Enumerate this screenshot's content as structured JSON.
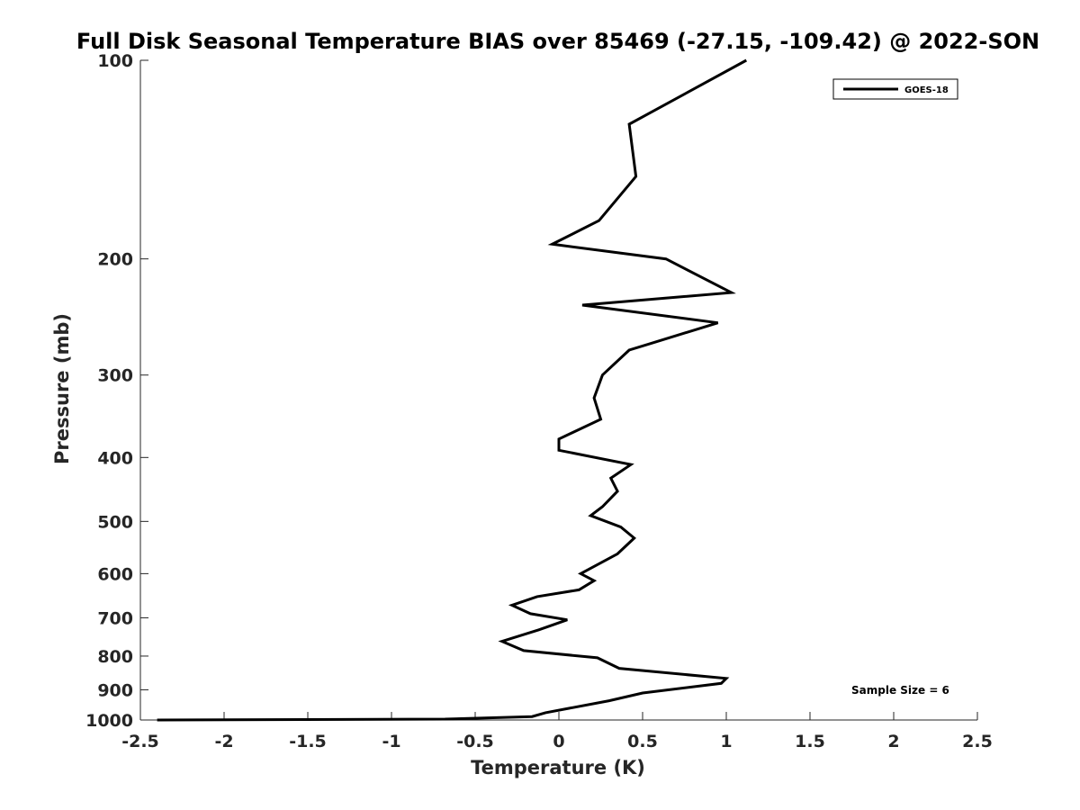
{
  "chart_data": {
    "type": "line",
    "title": "Full Disk Seasonal Temperature BIAS over 85469 (-27.15, -109.42) @ 2022-SON",
    "xlabel": "Temperature (K)",
    "ylabel": "Pressure (mb)",
    "xlim": [
      -2.5,
      2.5
    ],
    "ylim": [
      100,
      1000
    ],
    "yscale": "log",
    "yreversed": true,
    "xticks": [
      -2.5,
      -2,
      -1.5,
      -1,
      -0.5,
      0,
      0.5,
      1,
      1.5,
      2,
      2.5
    ],
    "xtick_labels": [
      "-2.5",
      "-2",
      "-1.5",
      "-1",
      "-0.5",
      "0",
      "0.5",
      "1",
      "1.5",
      "2",
      "2.5"
    ],
    "yticks": [
      100,
      200,
      300,
      400,
      500,
      600,
      700,
      800,
      900,
      1000
    ],
    "ytick_labels": [
      "100",
      "200",
      "300",
      "400",
      "500",
      "600",
      "700",
      "800",
      "900",
      "1000"
    ],
    "grid": false,
    "legend": {
      "position": "top-right",
      "entries": [
        "GOES-18"
      ]
    },
    "annotation": "Sample Size = 6",
    "series": [
      {
        "name": "GOES-18",
        "color": "#000000",
        "points": [
          [
            1.12,
            100
          ],
          [
            0.42,
            125
          ],
          [
            0.46,
            150
          ],
          [
            0.24,
            175
          ],
          [
            -0.04,
            190
          ],
          [
            0.64,
            200
          ],
          [
            1.03,
            225
          ],
          [
            0.14,
            235
          ],
          [
            0.95,
            250
          ],
          [
            0.42,
            275
          ],
          [
            0.26,
            300
          ],
          [
            0.21,
            325
          ],
          [
            0.25,
            350
          ],
          [
            0.0,
            375
          ],
          [
            0.0,
            390
          ],
          [
            0.43,
            410
          ],
          [
            0.31,
            430
          ],
          [
            0.35,
            450
          ],
          [
            0.26,
            475
          ],
          [
            0.19,
            490
          ],
          [
            0.37,
            510
          ],
          [
            0.45,
            530
          ],
          [
            0.35,
            560
          ],
          [
            0.13,
            600
          ],
          [
            0.21,
            615
          ],
          [
            0.12,
            635
          ],
          [
            -0.13,
            650
          ],
          [
            -0.28,
            670
          ],
          [
            -0.17,
            690
          ],
          [
            0.05,
            705
          ],
          [
            -0.12,
            730
          ],
          [
            -0.34,
            760
          ],
          [
            -0.21,
            785
          ],
          [
            0.23,
            805
          ],
          [
            0.36,
            835
          ],
          [
            1.0,
            865
          ],
          [
            0.97,
            880
          ],
          [
            0.5,
            910
          ],
          [
            0.3,
            935
          ],
          [
            0.06,
            960
          ],
          [
            -0.08,
            975
          ],
          [
            -0.16,
            988
          ],
          [
            -0.68,
            997
          ],
          [
            -2.4,
            1000
          ]
        ]
      }
    ]
  }
}
